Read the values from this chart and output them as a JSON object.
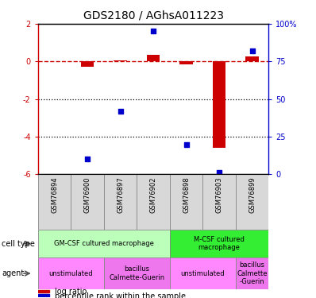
{
  "title": "GDS2180 / AGhsA011223",
  "samples": [
    "GSM76894",
    "GSM76900",
    "GSM76897",
    "GSM76902",
    "GSM76898",
    "GSM76903",
    "GSM76899"
  ],
  "log_ratio": [
    0.0,
    -0.3,
    0.05,
    0.35,
    -0.15,
    -4.6,
    0.25
  ],
  "percentile_rank": [
    null,
    10,
    42,
    95,
    20,
    1,
    82
  ],
  "ylim_left": [
    -6,
    2
  ],
  "ylim_right": [
    0,
    100
  ],
  "right_yticks": [
    0,
    25,
    50,
    75,
    100
  ],
  "right_yticklabels": [
    "0",
    "25",
    "50",
    "75",
    "100%"
  ],
  "left_yticks": [
    -6,
    -4,
    -2,
    0,
    2
  ],
  "left_yticklabels": [
    "-6",
    "-4",
    "-2",
    "0",
    "2"
  ],
  "red_color": "#cc0000",
  "blue_color": "#0000cc",
  "dotted_lines": [
    -2,
    -4
  ],
  "bar_width": 0.4,
  "cell_type_groups": [
    {
      "label": "GM-CSF cultured macrophage",
      "span": [
        0,
        3
      ],
      "color": "#bbffbb"
    },
    {
      "label": "M-CSF cultured\nmacrophage",
      "span": [
        4,
        6
      ],
      "color": "#33ee33"
    }
  ],
  "agent_groups": [
    {
      "label": "unstimulated",
      "span": [
        0,
        1
      ],
      "color": "#ff88ff"
    },
    {
      "label": "bacillus\nCalmette-Guerin",
      "span": [
        2,
        3
      ],
      "color": "#ee77ee"
    },
    {
      "label": "unstimulated",
      "span": [
        4,
        5
      ],
      "color": "#ff88ff"
    },
    {
      "label": "bacillus\nCalmette\n-Guerin",
      "span": [
        6,
        6
      ],
      "color": "#ee77ee"
    }
  ],
  "sample_bg_color": "#d8d8d8",
  "legend_red": "log ratio",
  "legend_blue": "percentile rank within the sample",
  "label_cell_type": "cell type",
  "label_agent": "agent",
  "title_fontsize": 10,
  "tick_fontsize": 7,
  "sample_fontsize": 6,
  "annot_fontsize": 6,
  "legend_fontsize": 7
}
